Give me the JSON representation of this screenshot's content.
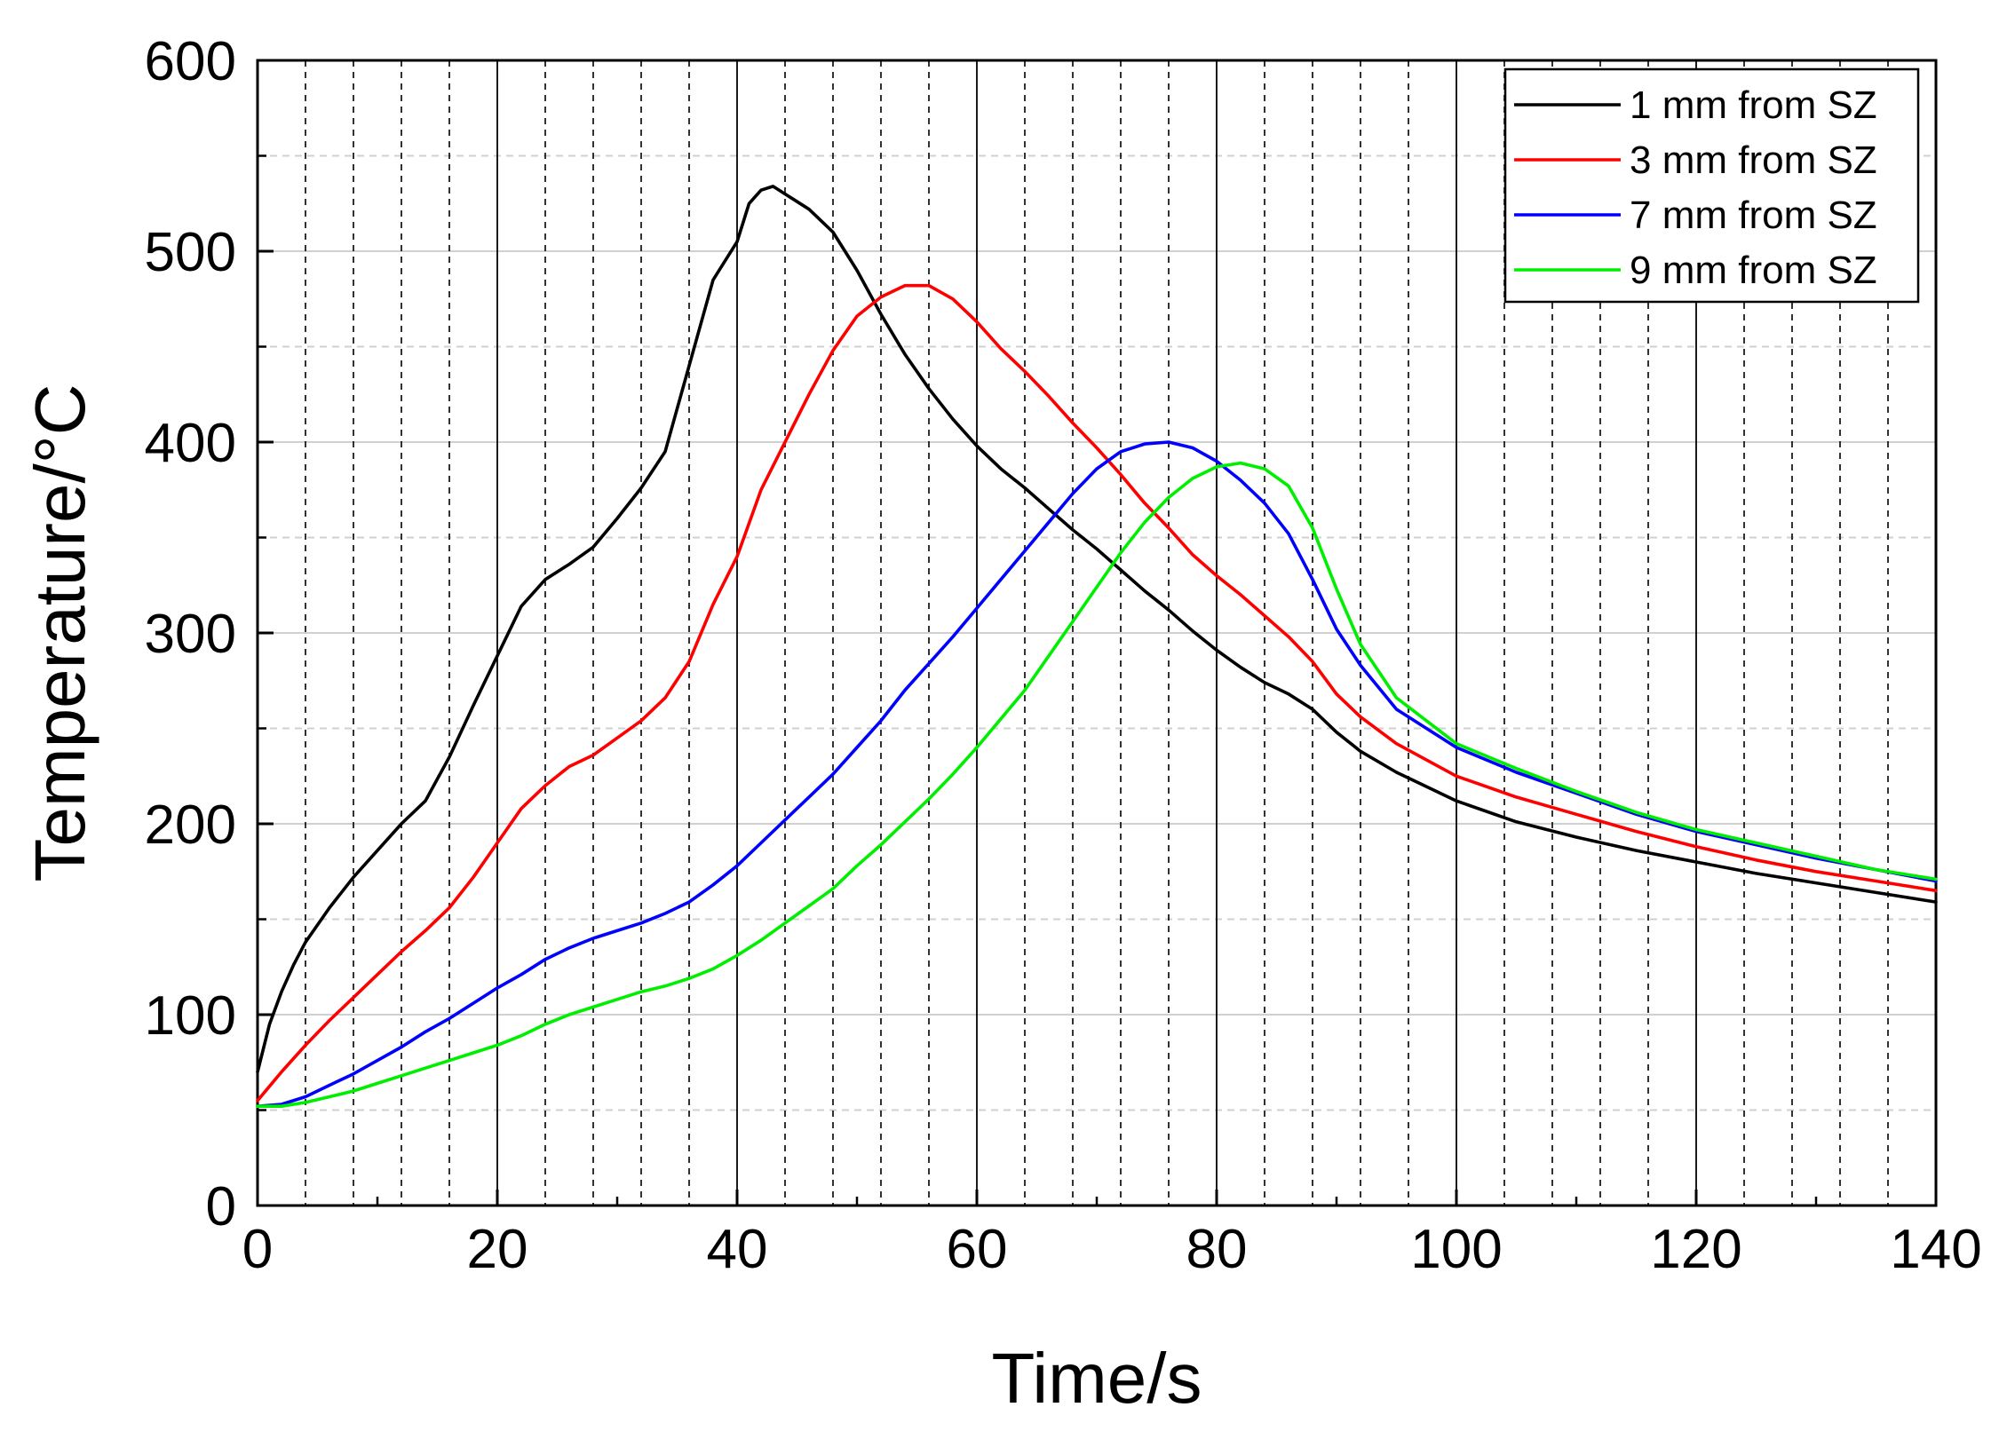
{
  "chart_data": {
    "type": "line",
    "title": "",
    "xlabel": "Time/s",
    "ylabel": "Temperature/°C",
    "xlim": [
      0,
      140
    ],
    "ylim": [
      0,
      600
    ],
    "xticks": [
      0,
      20,
      40,
      60,
      80,
      100,
      120,
      140
    ],
    "yticks": [
      0,
      100,
      200,
      300,
      400,
      500,
      600
    ],
    "x_minor_step": 4,
    "y_minor_step": 50,
    "grid": true,
    "legend_position": "top-right",
    "series": [
      {
        "name": "1 mm from SZ",
        "color": "#000000",
        "points": [
          [
            0,
            70
          ],
          [
            1,
            95
          ],
          [
            2,
            112
          ],
          [
            3,
            126
          ],
          [
            4,
            138
          ],
          [
            6,
            156
          ],
          [
            8,
            172
          ],
          [
            10,
            186
          ],
          [
            12,
            200
          ],
          [
            14,
            212
          ],
          [
            16,
            235
          ],
          [
            18,
            262
          ],
          [
            20,
            288
          ],
          [
            22,
            314
          ],
          [
            24,
            328
          ],
          [
            26,
            336
          ],
          [
            28,
            345
          ],
          [
            30,
            360
          ],
          [
            32,
            376
          ],
          [
            34,
            395
          ],
          [
            36,
            440
          ],
          [
            38,
            485
          ],
          [
            40,
            505
          ],
          [
            41,
            525
          ],
          [
            42,
            532
          ],
          [
            43,
            534
          ],
          [
            44,
            530
          ],
          [
            46,
            522
          ],
          [
            48,
            510
          ],
          [
            50,
            490
          ],
          [
            52,
            467
          ],
          [
            54,
            446
          ],
          [
            56,
            428
          ],
          [
            58,
            412
          ],
          [
            60,
            398
          ],
          [
            62,
            386
          ],
          [
            64,
            376
          ],
          [
            66,
            365
          ],
          [
            68,
            354
          ],
          [
            70,
            344
          ],
          [
            72,
            333
          ],
          [
            74,
            322
          ],
          [
            76,
            312
          ],
          [
            78,
            301
          ],
          [
            80,
            291
          ],
          [
            82,
            282
          ],
          [
            84,
            274
          ],
          [
            86,
            268
          ],
          [
            88,
            260
          ],
          [
            90,
            248
          ],
          [
            92,
            238
          ],
          [
            95,
            227
          ],
          [
            100,
            212
          ],
          [
            105,
            201
          ],
          [
            110,
            193
          ],
          [
            115,
            186
          ],
          [
            120,
            180
          ],
          [
            125,
            174
          ],
          [
            130,
            169
          ],
          [
            135,
            164
          ],
          [
            140,
            159
          ]
        ]
      },
      {
        "name": "3 mm from SZ",
        "color": "#ff0000",
        "points": [
          [
            0,
            55
          ],
          [
            2,
            70
          ],
          [
            4,
            84
          ],
          [
            6,
            97
          ],
          [
            8,
            109
          ],
          [
            10,
            121
          ],
          [
            12,
            133
          ],
          [
            14,
            144
          ],
          [
            16,
            156
          ],
          [
            18,
            172
          ],
          [
            20,
            190
          ],
          [
            22,
            208
          ],
          [
            24,
            220
          ],
          [
            26,
            230
          ],
          [
            28,
            236
          ],
          [
            30,
            245
          ],
          [
            32,
            254
          ],
          [
            34,
            266
          ],
          [
            36,
            285
          ],
          [
            38,
            315
          ],
          [
            40,
            340
          ],
          [
            42,
            375
          ],
          [
            44,
            400
          ],
          [
            46,
            425
          ],
          [
            48,
            448
          ],
          [
            50,
            466
          ],
          [
            52,
            476
          ],
          [
            54,
            482
          ],
          [
            56,
            482
          ],
          [
            58,
            475
          ],
          [
            60,
            463
          ],
          [
            62,
            449
          ],
          [
            64,
            437
          ],
          [
            66,
            424
          ],
          [
            68,
            410
          ],
          [
            70,
            397
          ],
          [
            72,
            383
          ],
          [
            74,
            368
          ],
          [
            76,
            355
          ],
          [
            78,
            341
          ],
          [
            80,
            330
          ],
          [
            82,
            320
          ],
          [
            84,
            309
          ],
          [
            86,
            298
          ],
          [
            88,
            285
          ],
          [
            90,
            268
          ],
          [
            92,
            256
          ],
          [
            95,
            242
          ],
          [
            100,
            225
          ],
          [
            105,
            214
          ],
          [
            110,
            205
          ],
          [
            115,
            196
          ],
          [
            120,
            188
          ],
          [
            125,
            181
          ],
          [
            130,
            175
          ],
          [
            135,
            170
          ],
          [
            140,
            165
          ]
        ]
      },
      {
        "name": "7 mm from SZ",
        "color": "#0000ff",
        "points": [
          [
            0,
            52
          ],
          [
            2,
            53
          ],
          [
            4,
            57
          ],
          [
            6,
            63
          ],
          [
            8,
            69
          ],
          [
            10,
            76
          ],
          [
            12,
            83
          ],
          [
            14,
            91
          ],
          [
            16,
            98
          ],
          [
            18,
            106
          ],
          [
            20,
            114
          ],
          [
            22,
            121
          ],
          [
            24,
            129
          ],
          [
            26,
            135
          ],
          [
            28,
            140
          ],
          [
            30,
            144
          ],
          [
            32,
            148
          ],
          [
            34,
            153
          ],
          [
            36,
            159
          ],
          [
            38,
            168
          ],
          [
            40,
            178
          ],
          [
            42,
            190
          ],
          [
            44,
            202
          ],
          [
            46,
            214
          ],
          [
            48,
            226
          ],
          [
            50,
            240
          ],
          [
            52,
            254
          ],
          [
            54,
            270
          ],
          [
            56,
            284
          ],
          [
            58,
            298
          ],
          [
            60,
            313
          ],
          [
            62,
            328
          ],
          [
            64,
            343
          ],
          [
            66,
            358
          ],
          [
            68,
            373
          ],
          [
            70,
            386
          ],
          [
            72,
            395
          ],
          [
            74,
            399
          ],
          [
            76,
            400
          ],
          [
            78,
            397
          ],
          [
            80,
            390
          ],
          [
            82,
            380
          ],
          [
            84,
            368
          ],
          [
            86,
            352
          ],
          [
            88,
            328
          ],
          [
            90,
            302
          ],
          [
            92,
            283
          ],
          [
            95,
            260
          ],
          [
            100,
            240
          ],
          [
            105,
            227
          ],
          [
            110,
            216
          ],
          [
            115,
            205
          ],
          [
            120,
            196
          ],
          [
            125,
            189
          ],
          [
            130,
            182
          ],
          [
            135,
            176
          ],
          [
            140,
            170
          ]
        ]
      },
      {
        "name": "9 mm from SZ",
        "color": "#00ee00",
        "points": [
          [
            0,
            52
          ],
          [
            2,
            52
          ],
          [
            4,
            54
          ],
          [
            6,
            57
          ],
          [
            8,
            60
          ],
          [
            10,
            64
          ],
          [
            12,
            68
          ],
          [
            14,
            72
          ],
          [
            16,
            76
          ],
          [
            18,
            80
          ],
          [
            20,
            84
          ],
          [
            22,
            89
          ],
          [
            24,
            95
          ],
          [
            26,
            100
          ],
          [
            28,
            104
          ],
          [
            30,
            108
          ],
          [
            32,
            112
          ],
          [
            34,
            115
          ],
          [
            36,
            119
          ],
          [
            38,
            124
          ],
          [
            40,
            131
          ],
          [
            42,
            139
          ],
          [
            44,
            148
          ],
          [
            46,
            157
          ],
          [
            48,
            166
          ],
          [
            50,
            178
          ],
          [
            52,
            189
          ],
          [
            54,
            201
          ],
          [
            56,
            213
          ],
          [
            58,
            226
          ],
          [
            60,
            240
          ],
          [
            62,
            255
          ],
          [
            64,
            270
          ],
          [
            66,
            288
          ],
          [
            68,
            306
          ],
          [
            70,
            324
          ],
          [
            72,
            342
          ],
          [
            74,
            358
          ],
          [
            76,
            371
          ],
          [
            78,
            381
          ],
          [
            80,
            387
          ],
          [
            82,
            389
          ],
          [
            84,
            386
          ],
          [
            86,
            377
          ],
          [
            88,
            355
          ],
          [
            90,
            323
          ],
          [
            92,
            294
          ],
          [
            95,
            266
          ],
          [
            100,
            242
          ],
          [
            105,
            229
          ],
          [
            110,
            217
          ],
          [
            115,
            206
          ],
          [
            120,
            197
          ],
          [
            125,
            190
          ],
          [
            130,
            183
          ],
          [
            135,
            176
          ],
          [
            140,
            171
          ]
        ]
      }
    ]
  }
}
